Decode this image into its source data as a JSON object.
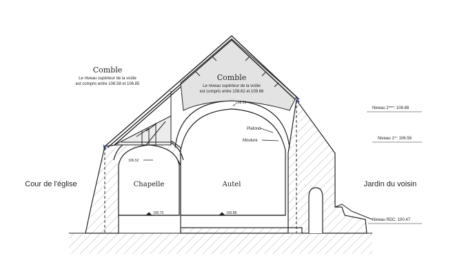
{
  "labels": {
    "comble_left_title": "Comble",
    "comble_left_note_1": "Le niveau supérieur de la voûte",
    "comble_left_note_2": "est compris entre 106.58 et 106.85",
    "comble_right_title": "Comble",
    "comble_right_note_1": "Le niveau supérieur de la voûte",
    "comble_right_note_2": "est compris entre 108.62 et 109.66",
    "chapelle": "Chapelle",
    "autel": "Autel",
    "cour": "Cour de l'église",
    "jardin": "Jardin du voisin",
    "plafond": "Plafond",
    "moulure": "Moulure"
  },
  "levels": {
    "niveau_2_prefix": "Niveau 2",
    "niveau_2_sup": "ème",
    "niveau_2_value": ": 108.88",
    "niveau_1_prefix": "Niveau 1",
    "niveau_1_sup": "er",
    "niveau_1_value": ": 106.56",
    "niveau_rdc": "Niveau RDC: 100.47"
  },
  "spot_heights": {
    "vault_right_top": "108.31",
    "vault_left_springing": "106.52",
    "floor_chapelle": "100.75",
    "floor_autel": "100.88"
  },
  "colors": {
    "line": "#222222",
    "hatch": "#b5b5b5",
    "attic_fill": "#e3e3e3",
    "accent_blue": "#2b3fc9"
  }
}
